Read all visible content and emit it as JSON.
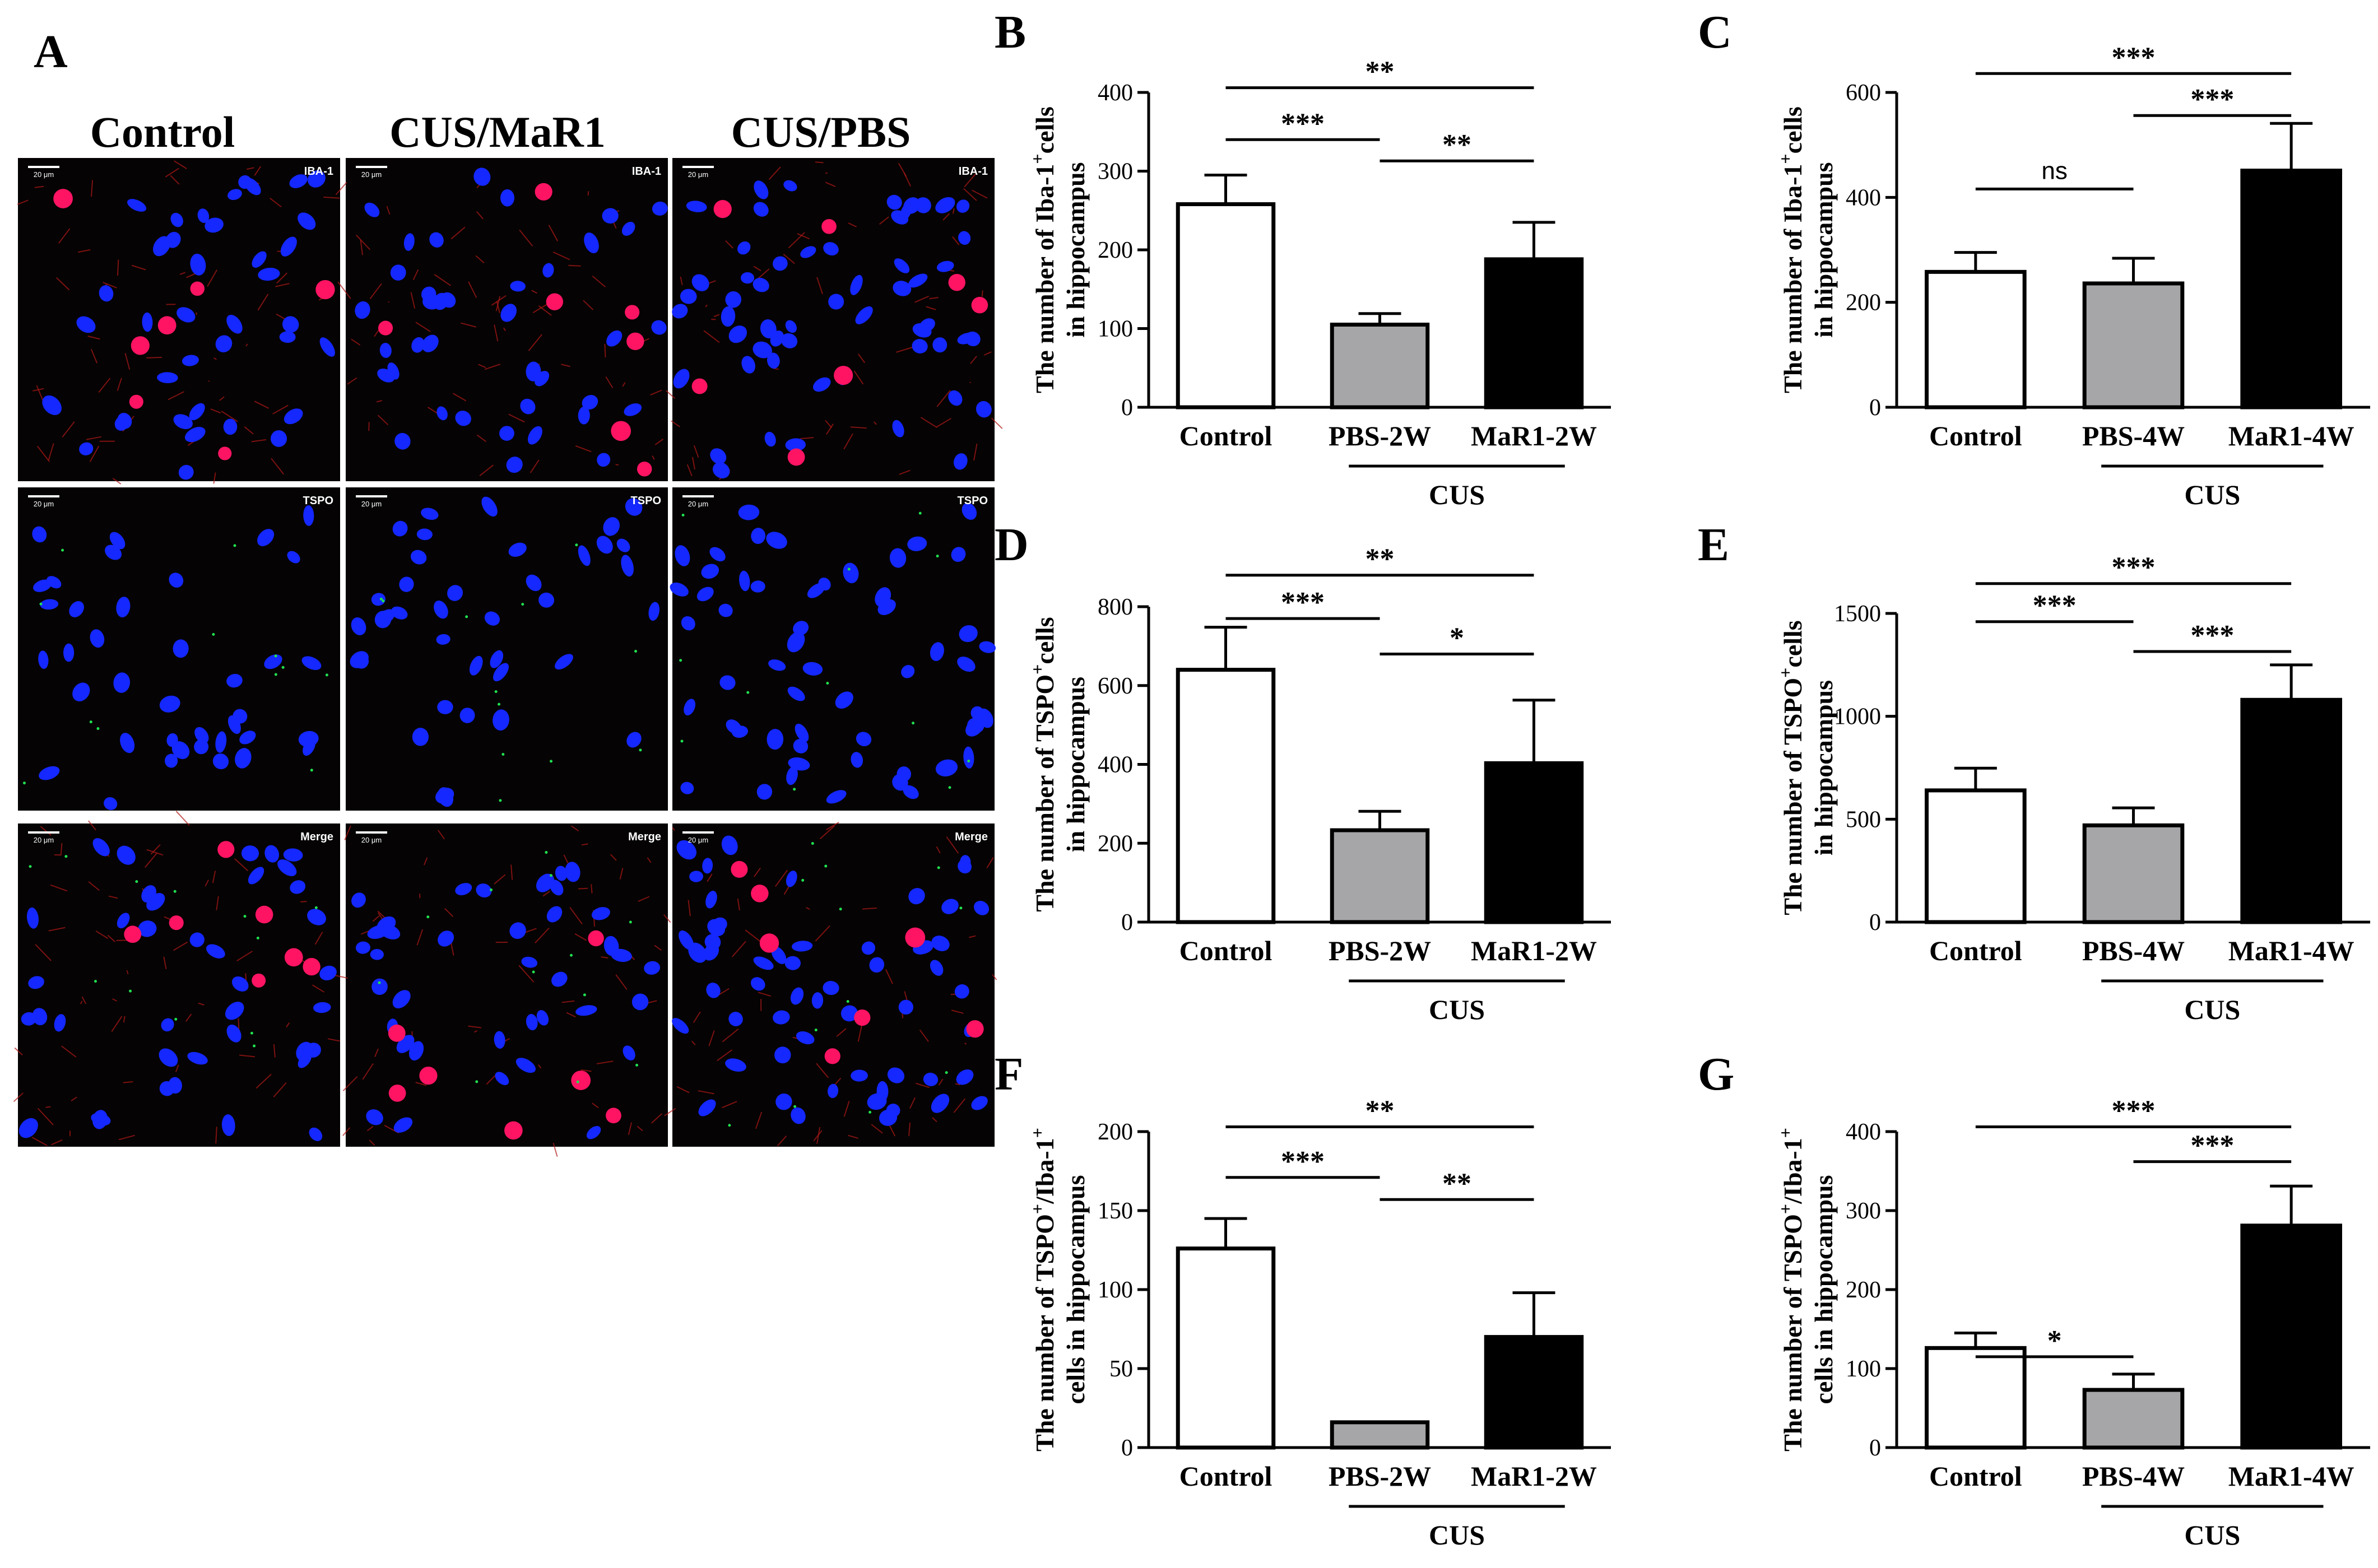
{
  "panel_a": {
    "letter": "A",
    "columns": [
      "Control",
      "CUS/MaR1",
      "CUS/PBS"
    ],
    "rows": [
      "IBA-1",
      "TSPO",
      "Merge"
    ],
    "scale_bar": "20 μm",
    "colors": {
      "nucleus": "#1428ff",
      "iba1": "#ff1464",
      "tspo": "#20e050",
      "background": "#050303"
    }
  },
  "chart_data": [
    {
      "panel": "B",
      "type": "bar",
      "ylabel": [
        "The number of Iba-1",
        "+",
        "cells",
        "in hippocampus"
      ],
      "categories": [
        "Control",
        "PBS-2W",
        "MaR1-2W"
      ],
      "values": [
        258,
        105,
        188
      ],
      "errors": [
        37,
        14,
        47
      ],
      "fills": [
        "#ffffff",
        "#a6a6a8",
        "#000000"
      ],
      "ylim": [
        0,
        400
      ],
      "yticks": [
        0,
        100,
        200,
        300,
        400
      ],
      "group_label": "CUS",
      "group_span": [
        1,
        2
      ],
      "sig": [
        {
          "from": 0,
          "to": 1,
          "label": "***",
          "y": 340
        },
        {
          "from": 1,
          "to": 2,
          "label": "**",
          "y": 313
        },
        {
          "from": 0,
          "to": 2,
          "label": "**",
          "y": 406
        }
      ]
    },
    {
      "panel": "C",
      "type": "bar",
      "ylabel": [
        "The number of Iba-1",
        "+",
        "cells",
        "in hippocampus"
      ],
      "categories": [
        "Control",
        "PBS-4W",
        "MaR1-4W"
      ],
      "values": [
        258,
        236,
        451
      ],
      "errors": [
        37,
        48,
        90
      ],
      "fills": [
        "#ffffff",
        "#a6a6a8",
        "#000000"
      ],
      "ylim": [
        0,
        600
      ],
      "yticks": [
        0,
        200,
        400,
        600
      ],
      "group_label": "CUS",
      "group_span": [
        1,
        2
      ],
      "sig": [
        {
          "from": 0,
          "to": 1,
          "label": "ns",
          "y": 416
        },
        {
          "from": 1,
          "to": 2,
          "label": "***",
          "y": 556
        },
        {
          "from": 0,
          "to": 2,
          "label": "***",
          "y": 636
        }
      ]
    },
    {
      "panel": "D",
      "type": "bar",
      "ylabel": [
        "The number of TSPO",
        "+",
        "cells",
        "in hippocampus"
      ],
      "categories": [
        "Control",
        "PBS-2W",
        "MaR1-2W"
      ],
      "values": [
        640,
        233,
        403
      ],
      "errors": [
        108,
        48,
        160
      ],
      "fills": [
        "#ffffff",
        "#a6a6a8",
        "#000000"
      ],
      "ylim": [
        0,
        800
      ],
      "yticks": [
        0,
        200,
        400,
        600,
        800
      ],
      "group_label": "CUS",
      "group_span": [
        1,
        2
      ],
      "sig": [
        {
          "from": 0,
          "to": 1,
          "label": "***",
          "y": 770
        },
        {
          "from": 1,
          "to": 2,
          "label": "*",
          "y": 680
        },
        {
          "from": 0,
          "to": 2,
          "label": "**",
          "y": 880
        }
      ]
    },
    {
      "panel": "E",
      "type": "bar",
      "ylabel": [
        "The number of TSPO",
        "+",
        "cells",
        "in hippocampus"
      ],
      "categories": [
        "Control",
        "PBS-4W",
        "MaR1-4W"
      ],
      "values": [
        640,
        470,
        1080
      ],
      "errors": [
        108,
        85,
        170
      ],
      "fills": [
        "#ffffff",
        "#a6a6a8",
        "#000000"
      ],
      "ylim": [
        0,
        1500
      ],
      "yticks": [
        0,
        500,
        1000,
        1500
      ],
      "group_label": "CUS",
      "group_span": [
        1,
        2
      ],
      "sig": [
        {
          "from": 0,
          "to": 1,
          "label": "***",
          "y": 1460
        },
        {
          "from": 1,
          "to": 2,
          "label": "***",
          "y": 1315
        },
        {
          "from": 0,
          "to": 2,
          "label": "***",
          "y": 1645
        }
      ]
    },
    {
      "panel": "F",
      "type": "bar",
      "ylabel": [
        "The number of TSPO",
        "+",
        "/Iba-1",
        "+",
        "cells in hippocampus"
      ],
      "categories": [
        "Control",
        "PBS-2W",
        "MaR1-2W"
      ],
      "values": [
        126,
        16,
        70
      ],
      "errors": [
        19,
        0,
        28
      ],
      "fills": [
        "#ffffff",
        "#a6a6a8",
        "#000000"
      ],
      "ylim": [
        0,
        200
      ],
      "yticks": [
        0,
        50,
        100,
        150,
        200
      ],
      "group_label": "CUS",
      "group_span": [
        1,
        2
      ],
      "sig": [
        {
          "from": 0,
          "to": 1,
          "label": "***",
          "y": 171
        },
        {
          "from": 1,
          "to": 2,
          "label": "**",
          "y": 157
        },
        {
          "from": 0,
          "to": 2,
          "label": "**",
          "y": 203
        }
      ]
    },
    {
      "panel": "G",
      "type": "bar",
      "ylabel": [
        "The number of TSPO",
        "+",
        "/Iba-1",
        "+",
        "cells in hippocampus"
      ],
      "categories": [
        "Control",
        "PBS-4W",
        "MaR1-4W"
      ],
      "values": [
        126,
        73,
        281
      ],
      "errors": [
        19,
        20,
        50
      ],
      "fills": [
        "#ffffff",
        "#a6a6a8",
        "#000000"
      ],
      "ylim": [
        0,
        400
      ],
      "yticks": [
        0,
        100,
        200,
        300,
        400
      ],
      "group_label": "CUS",
      "group_span": [
        1,
        2
      ],
      "sig": [
        {
          "from": 0,
          "to": 1,
          "label": "*",
          "y": 115
        },
        {
          "from": 1,
          "to": 2,
          "label": "***",
          "y": 362
        },
        {
          "from": 0,
          "to": 2,
          "label": "***",
          "y": 406
        }
      ]
    }
  ]
}
